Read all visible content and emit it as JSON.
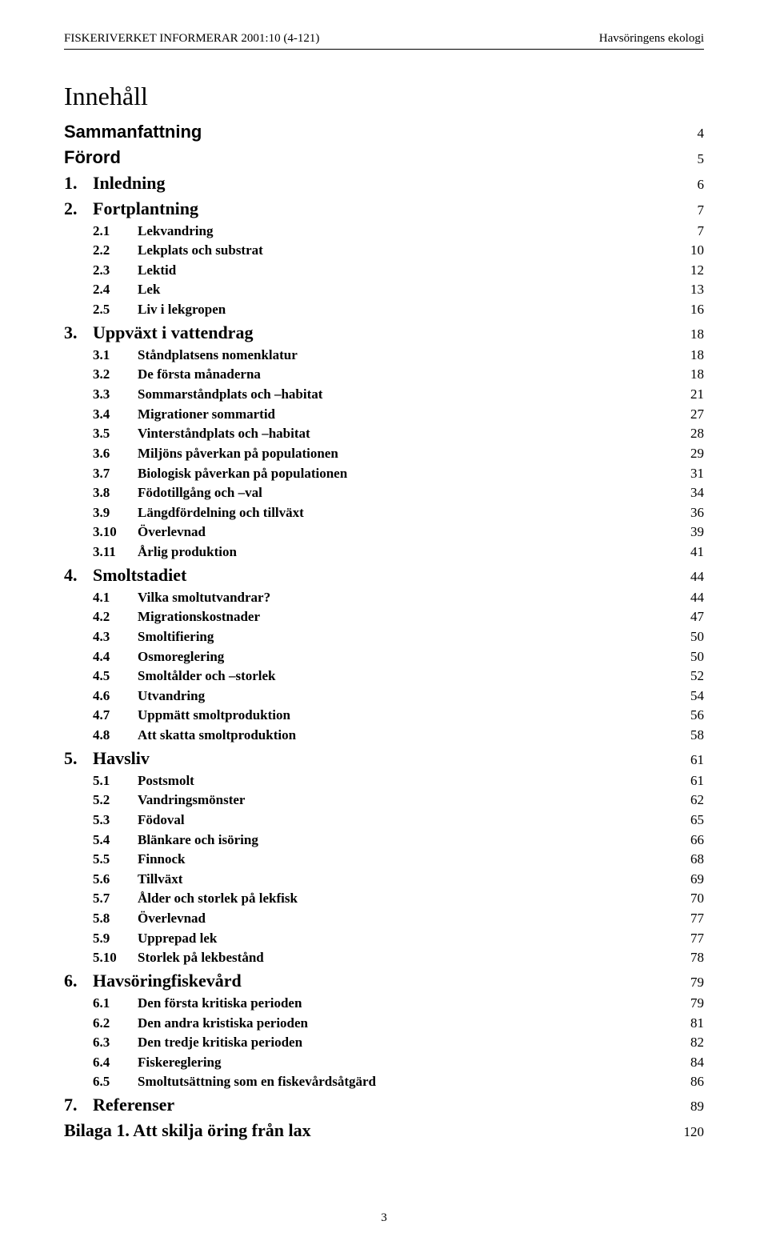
{
  "header": {
    "left": "FISKERIVERKET INFORMERAR 2001:10 (4-121)",
    "right": "Havsöringens ekologi"
  },
  "title": "Innehåll",
  "toc": [
    {
      "level": 0,
      "num": "",
      "label": "Sammanfattning",
      "page": 4,
      "sans": true
    },
    {
      "level": 0,
      "num": "",
      "label": "Förord",
      "page": 5,
      "sans": true
    },
    {
      "level": 1,
      "num": "1.",
      "label": "Inledning",
      "page": 6
    },
    {
      "level": 1,
      "num": "2.",
      "label": "Fortplantning",
      "page": 7
    },
    {
      "level": 2,
      "num": "2.1",
      "label": "Lekvandring",
      "page": 7
    },
    {
      "level": 2,
      "num": "2.2",
      "label": "Lekplats och substrat",
      "page": 10
    },
    {
      "level": 2,
      "num": "2.3",
      "label": "Lektid",
      "page": 12
    },
    {
      "level": 2,
      "num": "2.4",
      "label": "Lek",
      "page": 13
    },
    {
      "level": 2,
      "num": "2.5",
      "label": "Liv i lekgropen",
      "page": 16
    },
    {
      "level": 1,
      "num": "3.",
      "label": "Uppväxt i vattendrag",
      "page": 18
    },
    {
      "level": 2,
      "num": "3.1",
      "label": "Ståndplatsens nomenklatur",
      "page": 18
    },
    {
      "level": 2,
      "num": "3.2",
      "label": "De första månaderna",
      "page": 18
    },
    {
      "level": 2,
      "num": "3.3",
      "label": "Sommarståndplats och –habitat",
      "page": 21
    },
    {
      "level": 2,
      "num": "3.4",
      "label": "Migrationer sommartid",
      "page": 27
    },
    {
      "level": 2,
      "num": "3.5",
      "label": "Vinterståndplats och –habitat",
      "page": 28
    },
    {
      "level": 2,
      "num": "3.6",
      "label": "Miljöns påverkan på populationen",
      "page": 29
    },
    {
      "level": 2,
      "num": "3.7",
      "label": "Biologisk påverkan på populationen",
      "page": 31
    },
    {
      "level": 2,
      "num": "3.8",
      "label": "Födotillgång och –val",
      "page": 34
    },
    {
      "level": 2,
      "num": "3.9",
      "label": "Längdfördelning och tillväxt",
      "page": 36
    },
    {
      "level": 2,
      "num": "3.10",
      "label": "Överlevnad",
      "page": 39
    },
    {
      "level": 2,
      "num": "3.11",
      "label": "Årlig produktion",
      "page": 41
    },
    {
      "level": 1,
      "num": "4.",
      "label": "Smoltstadiet",
      "page": 44
    },
    {
      "level": 2,
      "num": "4.1",
      "label": "Vilka smoltutvandrar?",
      "page": 44
    },
    {
      "level": 2,
      "num": "4.2",
      "label": "Migrationskostnader",
      "page": 47
    },
    {
      "level": 2,
      "num": "4.3",
      "label": "Smoltifiering",
      "page": 50
    },
    {
      "level": 2,
      "num": "4.4",
      "label": "Osmoreglering",
      "page": 50
    },
    {
      "level": 2,
      "num": "4.5",
      "label": "Smoltålder och –storlek",
      "page": 52
    },
    {
      "level": 2,
      "num": "4.6",
      "label": "Utvandring",
      "page": 54
    },
    {
      "level": 2,
      "num": "4.7",
      "label": "Uppmätt smoltproduktion",
      "page": 56
    },
    {
      "level": 2,
      "num": "4.8",
      "label": "Att skatta smoltproduktion",
      "page": 58
    },
    {
      "level": 1,
      "num": "5.",
      "label": "Havsliv",
      "page": 61
    },
    {
      "level": 2,
      "num": "5.1",
      "label": "Postsmolt",
      "page": 61
    },
    {
      "level": 2,
      "num": "5.2",
      "label": "Vandringsmönster",
      "page": 62
    },
    {
      "level": 2,
      "num": "5.3",
      "label": "Födoval",
      "page": 65
    },
    {
      "level": 2,
      "num": "5.4",
      "label": "Blänkare och isöring",
      "page": 66
    },
    {
      "level": 2,
      "num": "5.5",
      "label": "Finnock",
      "page": 68
    },
    {
      "level": 2,
      "num": "5.6",
      "label": "Tillväxt",
      "page": 69
    },
    {
      "level": 2,
      "num": "5.7",
      "label": "Ålder och storlek på lekfisk",
      "page": 70
    },
    {
      "level": 2,
      "num": "5.8",
      "label": "Överlevnad",
      "page": 77
    },
    {
      "level": 2,
      "num": "5.9",
      "label": "Upprepad lek",
      "page": 77
    },
    {
      "level": 2,
      "num": "5.10",
      "label": "Storlek på lekbestånd",
      "page": 78
    },
    {
      "level": 1,
      "num": "6.",
      "label": "Havsöringfiskevård",
      "page": 79
    },
    {
      "level": 2,
      "num": "6.1",
      "label": "Den första kritiska perioden",
      "page": 79
    },
    {
      "level": 2,
      "num": "6.2",
      "label": "Den andra kristiska perioden",
      "page": 81
    },
    {
      "level": 2,
      "num": "6.3",
      "label": "Den tredje kritiska perioden",
      "page": 82
    },
    {
      "level": 2,
      "num": "6.4",
      "label": "Fiskereglering",
      "page": 84
    },
    {
      "level": 2,
      "num": "6.5",
      "label": "Smoltutsättning som en fiskevårdsåtgärd",
      "page": 86
    },
    {
      "level": 1,
      "num": "7.",
      "label": "Referenser",
      "page": 89
    },
    {
      "level": 0,
      "num": "",
      "label": "Bilaga 1. Att skilja öring från lax",
      "page": 120
    }
  ],
  "pagenum": "3",
  "colors": {
    "text": "#000000",
    "background": "#ffffff",
    "rule": "#000000"
  },
  "fontsizes": {
    "header": 15,
    "title": 32,
    "level0_label": 22,
    "level1_label": 22,
    "level2_label": 17,
    "pagecol": 17,
    "pagenum": 15
  }
}
